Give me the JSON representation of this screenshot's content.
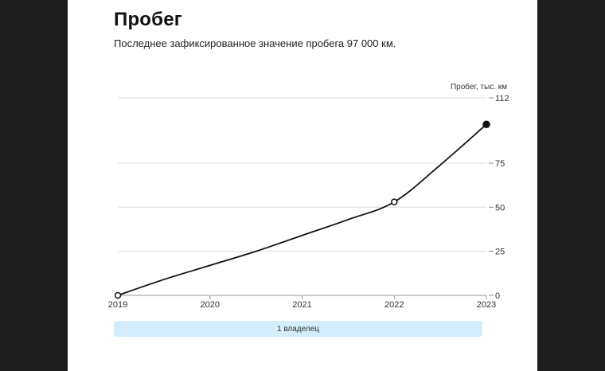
{
  "header": {
    "title": "Пробег",
    "subtitle": "Последнее зафиксированное значение пробега 97 000 км."
  },
  "owners": {
    "label": "1 владелец"
  },
  "colors": {
    "background": "#1e1e1e",
    "panel": "#ffffff",
    "line": "#111111",
    "grid": "#dddddd",
    "owner_bar": "#d3edfb"
  },
  "chart_data": {
    "type": "line",
    "title": "",
    "xlabel": "",
    "ylabel": "Пробег, тыс. км",
    "xlim": [
      2019,
      2023
    ],
    "ylim": [
      0,
      112
    ],
    "x_ticks": [
      "2019",
      "2020",
      "2021",
      "2022",
      "2023"
    ],
    "y_ticks": [
      0,
      25,
      50,
      75,
      112
    ],
    "grid": true,
    "series": [
      {
        "points": [
          {
            "x": 2019,
            "y": 0
          },
          {
            "x": 2019.5,
            "y": 9
          },
          {
            "x": 2020,
            "y": 17
          },
          {
            "x": 2020.5,
            "y": 25
          },
          {
            "x": 2021,
            "y": 34
          },
          {
            "x": 2021.5,
            "y": 43
          },
          {
            "x": 2022,
            "y": 53
          },
          {
            "x": 2022.5,
            "y": 74
          },
          {
            "x": 2023,
            "y": 97
          }
        ]
      }
    ],
    "markers": [
      {
        "x": 2019,
        "y": 0,
        "style": "open"
      },
      {
        "x": 2022,
        "y": 53,
        "style": "open"
      },
      {
        "x": 2023,
        "y": 97,
        "style": "filled"
      }
    ]
  }
}
